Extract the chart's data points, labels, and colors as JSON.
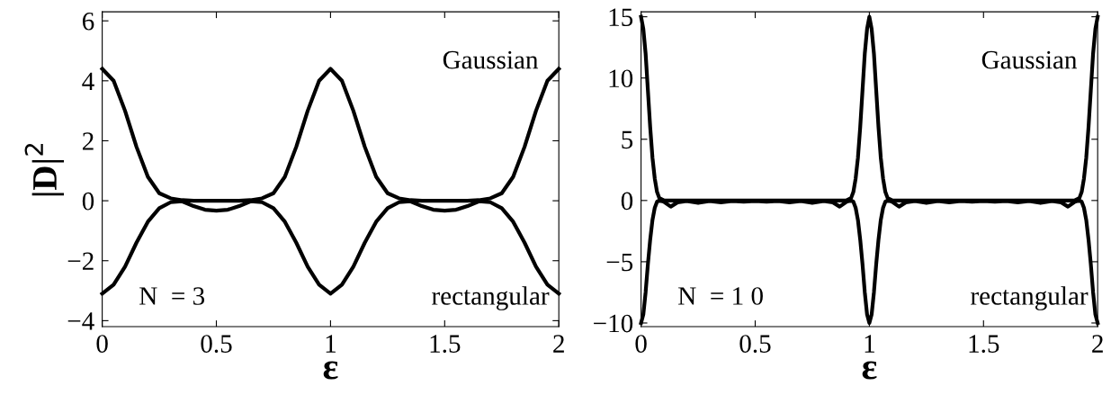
{
  "chart_data": [
    {
      "type": "line",
      "ylabel": "|D|$^{2}$",
      "xlabel": "ε",
      "xlim": [
        0,
        2
      ],
      "ylim": [
        -4.2,
        6.3
      ],
      "xticks": [
        0,
        0.5,
        1,
        1.5,
        2
      ],
      "yticks": [
        -4,
        -2,
        0,
        2,
        4,
        6
      ],
      "grid": false,
      "legend": "right",
      "marker": "none",
      "line_style": "solid",
      "annotations": [
        "N  = 3"
      ],
      "x": [
        0,
        0.05,
        0.1,
        0.15,
        0.2,
        0.25,
        0.3,
        0.35,
        0.4,
        0.45,
        0.5,
        0.55,
        0.6,
        0.65,
        0.7,
        0.75,
        0.8,
        0.85,
        0.9,
        0.95,
        1,
        1.05,
        1.1,
        1.15,
        1.2,
        1.25,
        1.3,
        1.35,
        1.4,
        1.45,
        1.5,
        1.55,
        1.6,
        1.65,
        1.7,
        1.75,
        1.8,
        1.85,
        1.9,
        1.95,
        2
      ],
      "series": [
        {
          "name": "Gaussian",
          "color": "#000000",
          "values": [
            4.4,
            4.0,
            3.0,
            1.8,
            0.8,
            0.25,
            0.08,
            0.02,
            0,
            0,
            0,
            0,
            0,
            0.02,
            0.08,
            0.25,
            0.8,
            1.8,
            3.0,
            4.0,
            4.4,
            4.0,
            3.0,
            1.8,
            0.8,
            0.25,
            0.08,
            0.02,
            0,
            0,
            0,
            0,
            0,
            0.02,
            0.08,
            0.25,
            0.8,
            1.8,
            3.0,
            4.0,
            4.4
          ]
        },
        {
          "name": "rectangular",
          "color": "#000000",
          "values": [
            -3.1,
            -2.8,
            -2.2,
            -1.4,
            -0.7,
            -0.25,
            -0.05,
            -0.02,
            -0.18,
            -0.3,
            -0.33,
            -0.3,
            -0.18,
            -0.02,
            -0.05,
            -0.25,
            -0.7,
            -1.4,
            -2.2,
            -2.8,
            -3.1,
            -2.8,
            -2.2,
            -1.4,
            -0.7,
            -0.25,
            -0.05,
            -0.02,
            -0.18,
            -0.3,
            -0.33,
            -0.3,
            -0.18,
            -0.02,
            -0.05,
            -0.25,
            -0.7,
            -1.4,
            -2.2,
            -2.8,
            -3.1
          ]
        }
      ]
    },
    {
      "type": "line",
      "xlabel": "ε",
      "xlim": [
        0,
        2
      ],
      "ylim": [
        -10.3,
        15.4
      ],
      "xticks": [
        0,
        0.5,
        1,
        1.5,
        2
      ],
      "yticks": [
        -10,
        -5,
        0,
        5,
        10,
        15
      ],
      "grid": false,
      "legend": "right",
      "marker": "none",
      "line_style": "solid",
      "annotations": [
        "N  = 1 0"
      ],
      "x": [
        0,
        0.01,
        0.02,
        0.03,
        0.04,
        0.05,
        0.06,
        0.07,
        0.08,
        0.1,
        0.13,
        0.16,
        0.2,
        0.25,
        0.3,
        0.35,
        0.4,
        0.45,
        0.5,
        0.55,
        0.6,
        0.65,
        0.7,
        0.75,
        0.8,
        0.84,
        0.87,
        0.9,
        0.92,
        0.93,
        0.94,
        0.95,
        0.96,
        0.97,
        0.98,
        0.99,
        1,
        1.01,
        1.02,
        1.03,
        1.04,
        1.05,
        1.06,
        1.07,
        1.08,
        1.1,
        1.13,
        1.16,
        1.2,
        1.25,
        1.3,
        1.35,
        1.4,
        1.45,
        1.5,
        1.55,
        1.6,
        1.65,
        1.7,
        1.75,
        1.8,
        1.84,
        1.87,
        1.9,
        1.92,
        1.93,
        1.94,
        1.95,
        1.96,
        1.97,
        1.98,
        1.99,
        2
      ],
      "series": [
        {
          "name": "Gaussian",
          "color": "#000000",
          "values": [
            15,
            14,
            12,
            9,
            6,
            3.5,
            1.8,
            0.7,
            0.2,
            0.02,
            0,
            0,
            0,
            0,
            0,
            0,
            0,
            0,
            0,
            0,
            0,
            0,
            0,
            0,
            0,
            0,
            0,
            0.02,
            0.2,
            0.7,
            1.8,
            3.5,
            6,
            9,
            12,
            14,
            15,
            14,
            12,
            9,
            6,
            3.5,
            1.8,
            0.7,
            0.2,
            0.02,
            0,
            0,
            0,
            0,
            0,
            0,
            0,
            0,
            0,
            0,
            0,
            0,
            0,
            0,
            0,
            0,
            0,
            0.02,
            0.2,
            0.7,
            1.8,
            3.5,
            6,
            9,
            12,
            14,
            15
          ]
        },
        {
          "name": "rectangular",
          "color": "#000000",
          "values": [
            -10,
            -9.3,
            -7.5,
            -5.2,
            -3.2,
            -1.6,
            -0.6,
            -0.1,
            0,
            -0.1,
            -0.5,
            -0.15,
            -0.05,
            -0.2,
            -0.05,
            -0.15,
            -0.05,
            -0.1,
            -0.05,
            -0.1,
            -0.05,
            -0.15,
            -0.05,
            -0.2,
            -0.05,
            -0.15,
            -0.5,
            -0.1,
            0,
            -0.1,
            -0.6,
            -1.6,
            -3.2,
            -5.2,
            -7.5,
            -9.3,
            -10,
            -9.3,
            -7.5,
            -5.2,
            -3.2,
            -1.6,
            -0.6,
            -0.1,
            0,
            -0.1,
            -0.5,
            -0.15,
            -0.05,
            -0.2,
            -0.05,
            -0.15,
            -0.05,
            -0.1,
            -0.05,
            -0.1,
            -0.05,
            -0.15,
            -0.05,
            -0.2,
            -0.05,
            -0.15,
            -0.5,
            -0.1,
            0,
            -0.1,
            -0.6,
            -1.6,
            -3.2,
            -5.2,
            -7.5,
            -9.3,
            -10
          ]
        }
      ]
    }
  ]
}
